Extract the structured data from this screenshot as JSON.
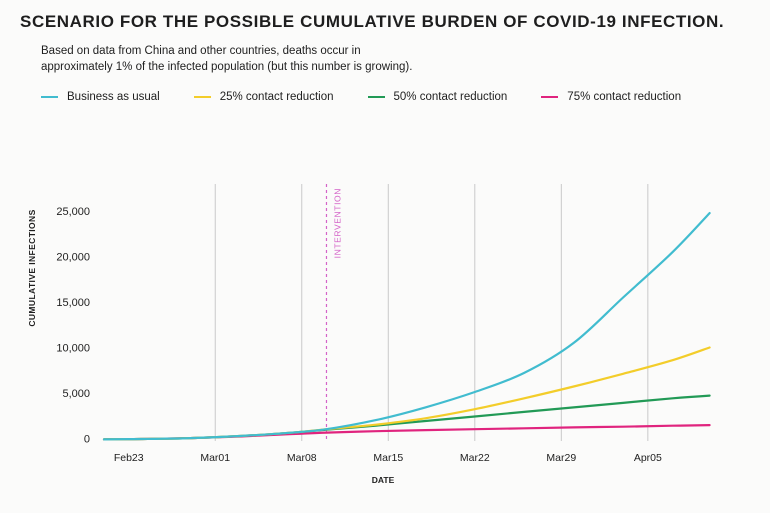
{
  "header": {
    "title": "SCENARIO FOR THE POSSIBLE CUMULATIVE BURDEN OF COVID-19 INFECTION.",
    "subtitle_line1": "Based on data from China and other countries, deaths occur in",
    "subtitle_line2": "approximately 1% of the infected population (but this number is growing)."
  },
  "legend": {
    "position": "top-left",
    "items": [
      {
        "label": "Business as usual",
        "color": "#41bccf"
      },
      {
        "label": "25% contact reduction",
        "color": "#f3cd2a"
      },
      {
        "label": "50% contact reduction",
        "color": "#229a56"
      },
      {
        "label": "75% contact reduction",
        "color": "#e0247e"
      }
    ]
  },
  "chart_data": {
    "type": "line",
    "title": "SCENARIO FOR THE POSSIBLE CUMULATIVE BURDEN OF COVID-19 INFECTION.",
    "xlabel": "DATE",
    "ylabel": "CUMULATIVE INFECTIONS",
    "xlim": [
      "2020-02-21",
      "2020-04-11"
    ],
    "ylim": [
      -300,
      28000
    ],
    "x_ticks": [
      "Feb23",
      "Mar01",
      "Mar08",
      "Mar15",
      "Mar22",
      "Mar29",
      "Apr05"
    ],
    "x_tick_dates": [
      "2020-02-23",
      "2020-03-01",
      "2020-03-08",
      "2020-03-15",
      "2020-03-22",
      "2020-03-29",
      "2020-04-05"
    ],
    "y_ticks": [
      0,
      5000,
      10000,
      15000,
      20000,
      25000
    ],
    "y_tick_labels": [
      "0",
      "5,000",
      "10,000",
      "15,000",
      "20,000",
      "25,000"
    ],
    "grid": {
      "vertical": true,
      "horizontal": false
    },
    "annotations": [
      {
        "text": "INTERVENTION",
        "x": "2020-03-10",
        "style": "dashed-vertical",
        "color": "#d463c8"
      }
    ],
    "x": [
      "2020-02-21",
      "2020-02-24",
      "2020-02-28",
      "2020-03-03",
      "2020-03-07",
      "2020-03-10",
      "2020-03-14",
      "2020-03-18",
      "2020-03-22",
      "2020-03-26",
      "2020-03-30",
      "2020-04-03",
      "2020-04-07",
      "2020-04-10"
    ],
    "series": [
      {
        "name": "Business as usual",
        "color": "#41bccf",
        "values": [
          -120,
          -80,
          20,
          250,
          600,
          1000,
          2000,
          3400,
          5100,
          7200,
          10500,
          15500,
          20500,
          24800
        ]
      },
      {
        "name": "25% contact reduction",
        "color": "#f3cd2a",
        "values": [
          -120,
          -80,
          20,
          250,
          600,
          1000,
          1500,
          2200,
          3200,
          4400,
          5700,
          7100,
          8600,
          10000
        ]
      },
      {
        "name": "50% contact reduction",
        "color": "#229a56",
        "values": [
          -120,
          -80,
          20,
          250,
          600,
          950,
          1400,
          1900,
          2400,
          2900,
          3400,
          3900,
          4400,
          4700
        ]
      },
      {
        "name": "75% contact reduction",
        "color": "#e0247e",
        "values": [
          -120,
          -80,
          20,
          200,
          450,
          620,
          780,
          900,
          1000,
          1100,
          1200,
          1280,
          1380,
          1450
        ]
      }
    ]
  }
}
